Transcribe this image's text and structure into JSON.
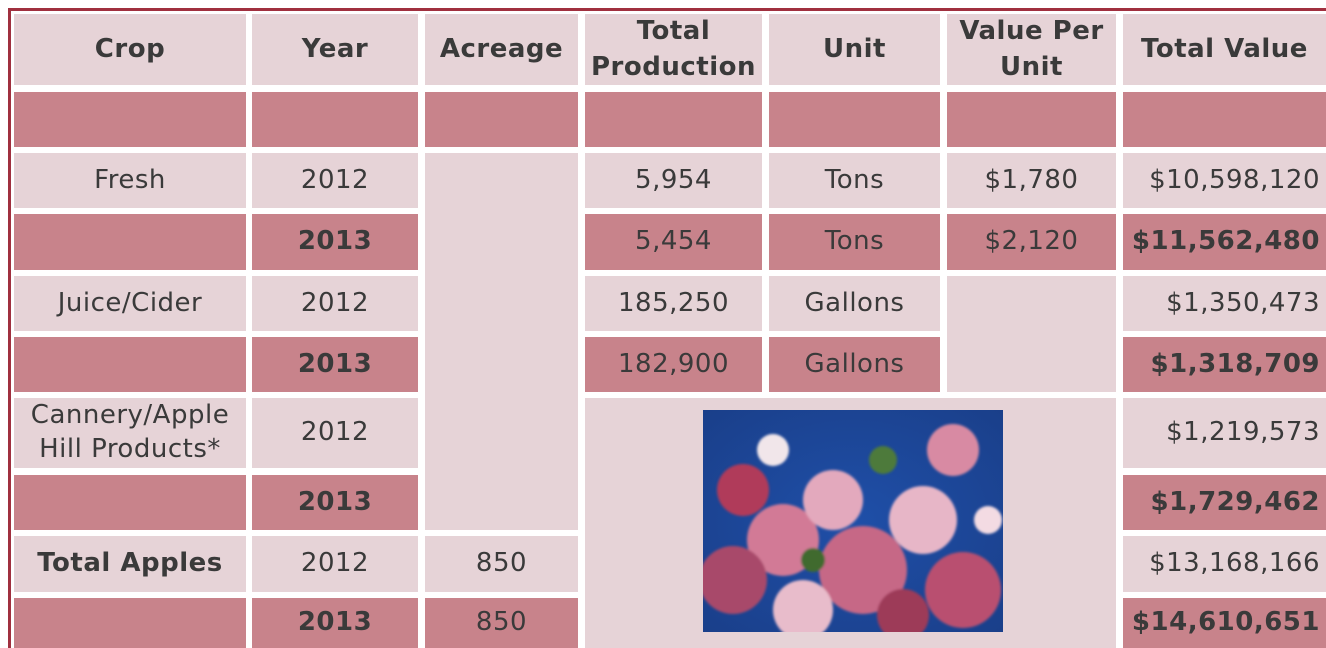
{
  "table": {
    "header": [
      "Crop",
      "Year",
      "Acreage",
      "Total Production",
      "Unit",
      "Value Per Unit",
      "Total Value"
    ],
    "rows": [
      {
        "crop": "Fresh",
        "year": "2012",
        "total_production": "5,954",
        "unit": "Tons",
        "value_per_unit": "$1,780",
        "total_value": "$10,598,120"
      },
      {
        "year": "2013",
        "total_production": "5,454",
        "unit": "Tons",
        "value_per_unit": "$2,120",
        "total_value": "$11,562,480"
      },
      {
        "crop": "Juice/Cider",
        "year": "2012",
        "total_production": "185,250",
        "unit": "Gallons",
        "total_value": "$1,350,473"
      },
      {
        "year": "2013",
        "total_production": "182,900",
        "unit": "Gallons",
        "total_value": "$1,318,709"
      },
      {
        "crop": "Cannery/Apple Hill Products*",
        "year": "2012",
        "total_value": "$1,219,573"
      },
      {
        "year": "2013",
        "total_value": "$1,729,462"
      },
      {
        "crop": "Total Apples",
        "year": "2012",
        "acreage": "850",
        "total_value": "$13,168,166"
      },
      {
        "year": "2013",
        "acreage": "850",
        "total_value": "$14,610,651"
      }
    ]
  }
}
